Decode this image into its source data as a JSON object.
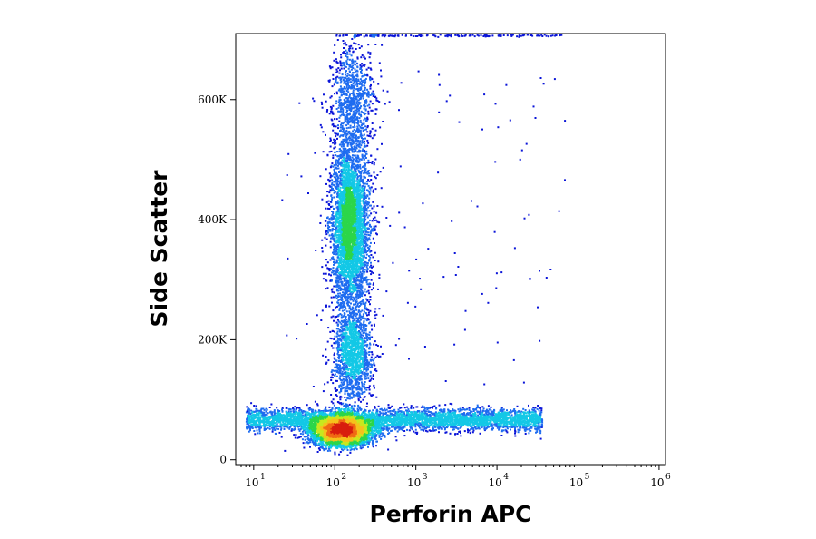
{
  "chart_data": {
    "type": "scatter",
    "title": "",
    "xlabel": "Perforin APC",
    "ylabel": "Side Scatter",
    "x_scale": "log",
    "xlim": [
      6,
      1200000
    ],
    "ylim": [
      -8000,
      710000
    ],
    "x_ticks": [
      {
        "base": "10",
        "exp": "1",
        "value": 10
      },
      {
        "base": "10",
        "exp": "2",
        "value": 100
      },
      {
        "base": "10",
        "exp": "3",
        "value": 1000
      },
      {
        "base": "10",
        "exp": "4",
        "value": 10000
      },
      {
        "base": "10",
        "exp": "5",
        "value": 100000
      },
      {
        "base": "10",
        "exp": "6",
        "value": 1000000
      }
    ],
    "y_ticks": [
      {
        "label": "0",
        "value": 0
      },
      {
        "label": "200K",
        "value": 200000
      },
      {
        "label": "400K",
        "value": 400000
      },
      {
        "label": "600K",
        "value": 600000
      }
    ],
    "grid": false,
    "colormap": [
      "#0a14d8",
      "#1e6cf0",
      "#13c8e6",
      "#2cd64a",
      "#c8e81e",
      "#f5c21c",
      "#f06a14",
      "#d81e0e"
    ],
    "populations": [
      {
        "name": "low-ssc-cluster",
        "center": [
          120,
          50000
        ],
        "spread": [
          0.18,
          12000
        ],
        "count": 5200
      },
      {
        "name": "low-ssc-tail",
        "log_x_range": [
          0.9,
          4.55
        ],
        "y_center": 68000,
        "y_spread": 9000,
        "count": 4200
      },
      {
        "name": "high-ssc-cluster",
        "center": [
          150,
          390000
        ],
        "spread": [
          0.12,
          70000
        ],
        "count": 4200
      },
      {
        "name": "mid-ssc-cluster",
        "center": [
          160,
          175000
        ],
        "spread": [
          0.12,
          40000
        ],
        "count": 1500
      },
      {
        "name": "upper-column",
        "center": [
          160,
          600000
        ],
        "spread": [
          0.13,
          55000
        ],
        "count": 900
      },
      {
        "name": "scattered-events",
        "log_x_range": [
          1.3,
          4.9
        ],
        "y_range": [
          120000,
          650000
        ],
        "count": 120
      },
      {
        "name": "saturated-top-edge",
        "log_x_range": [
          2.0,
          4.8
        ],
        "y_center": 708000,
        "y_spread": 900,
        "count": 160
      }
    ]
  }
}
